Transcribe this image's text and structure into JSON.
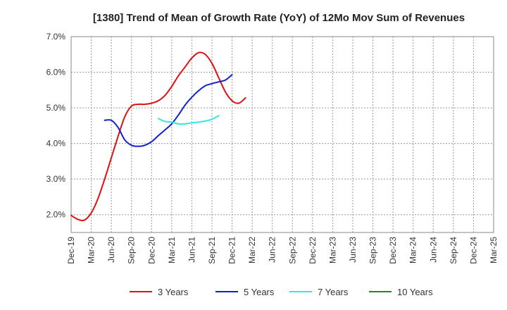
{
  "chart_data": {
    "type": "line",
    "title": "[1380]  Trend of Mean of Growth Rate (YoY) of 12Mo Mov Sum of Revenues",
    "xlabel": "",
    "ylabel": "",
    "ylim": [
      1.5,
      7.0
    ],
    "y_ticks": [
      2.0,
      3.0,
      4.0,
      5.0,
      6.0,
      7.0
    ],
    "y_tick_labels": [
      "2.0%",
      "3.0%",
      "4.0%",
      "5.0%",
      "6.0%",
      "7.0%"
    ],
    "x_tick_labels": [
      "Dec-19",
      "Mar-20",
      "Jun-20",
      "Sep-20",
      "Dec-20",
      "Mar-21",
      "Jun-21",
      "Sep-21",
      "Dec-21",
      "Mar-22",
      "Jun-22",
      "Sep-22",
      "Dec-22",
      "Mar-23",
      "Jun-23",
      "Sep-23",
      "Dec-23",
      "Mar-24",
      "Jun-24",
      "Sep-24",
      "Dec-24",
      "Mar-25"
    ],
    "grid": true,
    "legend_position": "bottom",
    "series": [
      {
        "name": "3 Years",
        "color": "#dd1111",
        "start_index": 0,
        "values": [
          1.98,
          1.87,
          1.85,
          2.05,
          2.45,
          3.0,
          3.6,
          4.2,
          4.75,
          5.05,
          5.1,
          5.1,
          5.13,
          5.2,
          5.35,
          5.6,
          5.9,
          6.15,
          6.4,
          6.55,
          6.5,
          6.25,
          5.85,
          5.45,
          5.2,
          5.13,
          5.28
        ]
      },
      {
        "name": "5 Years",
        "color": "#1122cc",
        "start_index": 5,
        "values": [
          4.65,
          4.65,
          4.45,
          4.1,
          3.95,
          3.92,
          3.95,
          4.05,
          4.22,
          4.38,
          4.55,
          4.8,
          5.08,
          5.3,
          5.48,
          5.62,
          5.68,
          5.73,
          5.78,
          5.93
        ]
      },
      {
        "name": "7 Years",
        "color": "#33e5e5",
        "start_index": 13,
        "values": [
          4.7,
          4.62,
          4.6,
          4.55,
          4.55,
          4.58,
          4.6,
          4.63,
          4.68,
          4.78
        ]
      },
      {
        "name": "10 Years",
        "color": "#228822",
        "start_index": 0,
        "values": []
      }
    ]
  }
}
